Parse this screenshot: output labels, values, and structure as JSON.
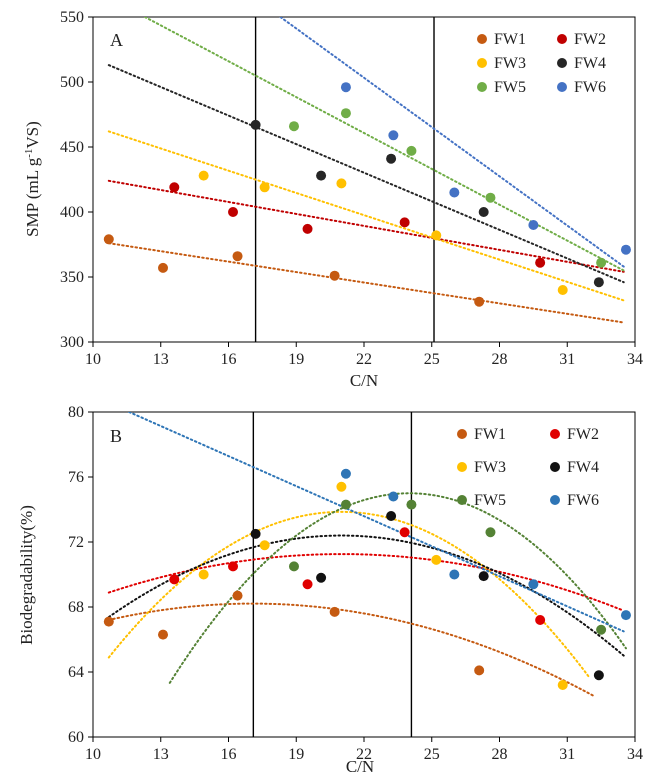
{
  "chart_data": [
    {
      "type": "scatter",
      "panel_label": "A",
      "xlabel": "C/N",
      "ylabel_parts": [
        "SMP (mL g",
        "-1",
        "VS)"
      ],
      "xlim": [
        10,
        34
      ],
      "ylim": [
        300,
        550
      ],
      "xticks": [
        10,
        13,
        16,
        19,
        22,
        25,
        28,
        31,
        34
      ],
      "yticks": [
        300,
        350,
        400,
        450,
        500,
        550
      ],
      "vlines": [
        17.2,
        25.1
      ],
      "legend_position": "top-right",
      "series": [
        {
          "name": "FW1",
          "color": "#C55A11",
          "x": [
            10.7,
            13.1,
            16.4,
            20.7,
            27.1
          ],
          "y": [
            379,
            357,
            366,
            351,
            331
          ],
          "trend": {
            "kind": "linear",
            "from": [
              10.7,
              376
            ],
            "to": [
              33.5,
              315
            ]
          }
        },
        {
          "name": "FW2",
          "color": "#C00000",
          "x": [
            13.6,
            16.2,
            19.5,
            23.8,
            29.8
          ],
          "y": [
            419,
            400,
            387,
            392,
            361
          ],
          "trend": {
            "kind": "linear",
            "from": [
              10.7,
              424
            ],
            "to": [
              33.5,
              354
            ]
          }
        },
        {
          "name": "FW3",
          "color": "#FFC000",
          "x": [
            14.9,
            17.6,
            21.0,
            25.2,
            30.8
          ],
          "y": [
            428,
            419,
            422,
            382,
            340
          ],
          "trend": {
            "kind": "linear",
            "from": [
              10.7,
              462
            ],
            "to": [
              33.5,
              332
            ]
          }
        },
        {
          "name": "FW4",
          "color": "#262626",
          "x": [
            17.2,
            20.1,
            23.2,
            27.3,
            32.4
          ],
          "y": [
            467,
            428,
            441,
            400,
            346
          ],
          "trend": {
            "kind": "linear",
            "from": [
              10.7,
              513
            ],
            "to": [
              33.5,
              346
            ]
          }
        },
        {
          "name": "FW5",
          "color": "#70AD47",
          "x": [
            18.9,
            21.2,
            24.1,
            27.6,
            32.5
          ],
          "y": [
            466,
            476,
            447,
            411,
            361
          ],
          "trend": {
            "kind": "linear",
            "from": [
              12.3,
              550
            ],
            "to": [
              33.5,
              355
            ]
          }
        },
        {
          "name": "FW6",
          "color": "#4472C4",
          "x": [
            21.2,
            23.3,
            26.0,
            29.5,
            33.6
          ],
          "y": [
            496,
            459,
            415,
            390,
            371
          ],
          "trend": {
            "kind": "linear",
            "from": [
              18.3,
              550
            ],
            "to": [
              33.5,
              358
            ]
          }
        }
      ]
    },
    {
      "type": "scatter",
      "panel_label": "B",
      "xlabel": "C/N",
      "ylabel": "Biodegradability(%)",
      "xlim": [
        10,
        34
      ],
      "ylim": [
        60,
        80
      ],
      "xticks": [
        10,
        13,
        16,
        19,
        22,
        25,
        28,
        31,
        34
      ],
      "yticks": [
        60,
        64,
        68,
        72,
        76,
        80
      ],
      "vlines": [
        17.1,
        24.1
      ],
      "legend_position": "top-right",
      "series": [
        {
          "name": "FW1",
          "color": "#C55A11",
          "x": [
            10.7,
            13.1,
            16.4,
            20.7,
            27.1
          ],
          "y": [
            67.1,
            66.3,
            68.7,
            67.7,
            64.1
          ],
          "trend": {
            "kind": "quadratic",
            "coef": [
              -0.0249,
              0.8498,
              60.96
            ],
            "xrange": [
              10.7,
              32.2
            ]
          }
        },
        {
          "name": "FW2",
          "color": "#E00000",
          "x": [
            13.6,
            16.2,
            19.5,
            23.8,
            29.8
          ],
          "y": [
            69.7,
            70.5,
            69.4,
            72.6,
            67.2
          ],
          "trend": {
            "kind": "quadratic",
            "coef": [
              -0.0223,
              0.9367,
              61.42
            ],
            "xrange": [
              10.7,
              33.5
            ]
          }
        },
        {
          "name": "FW3",
          "color": "#FFC000",
          "x": [
            14.9,
            17.6,
            21.0,
            25.2,
            30.8
          ],
          "y": [
            70.0,
            71.8,
            75.4,
            70.9,
            63.2
          ],
          "trend": {
            "kind": "quadratic",
            "coef": [
              -0.0845,
              3.5486,
              36.6
            ],
            "xrange": [
              10.7,
              32.0
            ]
          }
        },
        {
          "name": "FW4",
          "color": "#111111",
          "x": [
            17.2,
            20.1,
            23.2,
            27.3,
            32.4
          ],
          "y": [
            72.5,
            69.8,
            73.6,
            69.9,
            63.8
          ],
          "trend": {
            "kind": "quadratic",
            "coef": [
              -0.0473,
              1.9866,
              51.54
            ],
            "xrange": [
              10.7,
              33.5
            ]
          }
        },
        {
          "name": "FW5",
          "color": "#548235",
          "x": [
            18.9,
            21.2,
            24.1,
            27.6,
            32.5
          ],
          "y": [
            70.5,
            74.3,
            74.3,
            72.6,
            66.6
          ],
          "trend": {
            "kind": "quadratic",
            "coef": [
              -0.1037,
              4.9792,
              15.23
            ],
            "xrange": [
              13.4,
              33.6
            ]
          }
        },
        {
          "name": "FW6",
          "color": "#2E75B6",
          "x": [
            21.2,
            23.3,
            26.0,
            29.5,
            33.6
          ],
          "y": [
            76.2,
            74.8,
            70.0,
            69.4,
            67.5
          ],
          "trend": {
            "kind": "linear",
            "from": [
              11.6,
              80
            ],
            "to": [
              33.5,
              66.5
            ]
          }
        }
      ]
    }
  ]
}
